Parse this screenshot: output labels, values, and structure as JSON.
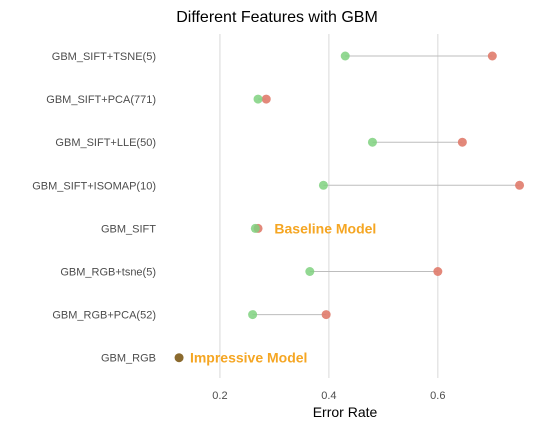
{
  "chart_data": {
    "type": "dumbbell",
    "title": "Different Features with GBM",
    "xlabel": "Error Rate",
    "ylabel": "",
    "xlim": [
      0.09,
      0.76
    ],
    "xticks": [
      0.2,
      0.4,
      0.6
    ],
    "xtick_labels": [
      "0.2",
      "0.4",
      "0.6"
    ],
    "grid": "vertical",
    "categories": [
      "GBM_SIFT+TSNE(5)",
      "GBM_SIFT+PCA(771)",
      "GBM_SIFT+LLE(50)",
      "GBM_SIFT+ISOMAP(10)",
      "GBM_SIFT",
      "GBM_RGB+tsne(5)",
      "GBM_RGB+PCA(52)",
      "GBM_RGB"
    ],
    "series": [
      {
        "color": "#7fd17f",
        "values": [
          0.43,
          0.27,
          0.48,
          0.39,
          0.265,
          0.365,
          0.26,
          0.125
        ]
      },
      {
        "color": "#e07b6b",
        "values": [
          0.7,
          0.285,
          0.645,
          0.75,
          0.27,
          0.6,
          0.395,
          0.125
        ]
      }
    ],
    "overlap_color": "#8b6a2e",
    "annotations": [
      {
        "text": "Baseline Model",
        "category": "GBM_SIFT",
        "x": 0.3
      },
      {
        "text": "Impressive Model",
        "category": "GBM_RGB",
        "x": 0.145
      }
    ],
    "annotation_color": "#f5a623"
  }
}
